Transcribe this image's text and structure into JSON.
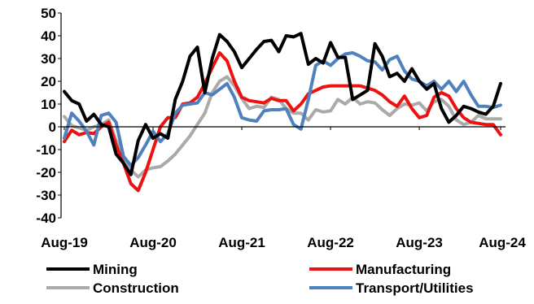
{
  "chart_data": {
    "type": "line",
    "title": "",
    "xlabel": "",
    "ylabel": "",
    "ylim": [
      -40,
      50
    ],
    "yticks": [
      -40,
      -30,
      -20,
      -10,
      0,
      10,
      20,
      30,
      40,
      50
    ],
    "xticks": [
      "Aug-19",
      "Aug-20",
      "Aug-21",
      "Aug-22",
      "Aug-23",
      "Aug-24"
    ],
    "x_start": "Aug-19",
    "x_end": "Aug-24",
    "grid": false,
    "legend_position": "bottom",
    "series": [
      {
        "name": "Mining",
        "color": "#000000",
        "values": [
          15.5,
          11.5,
          10,
          2.5,
          5.5,
          1,
          0,
          -12,
          -16,
          -21,
          -6,
          1,
          -5,
          -3,
          -5,
          12,
          20,
          31,
          35,
          15,
          30,
          40.5,
          37.5,
          33,
          26,
          30,
          34,
          37.5,
          38,
          33,
          40,
          39.5,
          41,
          27.5,
          30,
          28,
          37,
          30.5,
          30.5,
          12,
          14,
          16,
          36.5,
          31,
          22,
          23.5,
          20,
          25.5,
          20,
          16.5,
          19,
          8,
          2,
          5,
          9,
          8,
          6.5,
          5.5,
          9,
          19
        ]
      },
      {
        "name": "Manufacturing",
        "color": "#ee1111",
        "values": [
          -6.5,
          -1.5,
          -3.5,
          -2.5,
          -3,
          0,
          2,
          -8,
          -16,
          -25,
          -28,
          -20,
          -10,
          0,
          4,
          4,
          10,
          10.5,
          13,
          19,
          26,
          32.5,
          29,
          20,
          13,
          11.5,
          11,
          10.5,
          12.5,
          11.5,
          11.5,
          7,
          10,
          14.5,
          16,
          17.5,
          18,
          18,
          18,
          18,
          18,
          17,
          16,
          14,
          11,
          9,
          13.5,
          8,
          4,
          5,
          13,
          15,
          13.5,
          8,
          4,
          2,
          1.5,
          1,
          1,
          -3.5
        ]
      },
      {
        "name": "Construction",
        "color": "#aaaaaa",
        "values": [
          4.5,
          0.5,
          -0.5,
          -1.5,
          0,
          1,
          3,
          -6,
          -13,
          -19,
          -22,
          -19,
          -18,
          -17.5,
          -15,
          -12,
          -8,
          -4,
          1,
          6,
          15,
          20,
          22,
          18,
          12.5,
          8,
          9,
          8.5,
          13,
          12,
          8,
          6,
          6,
          3,
          7.5,
          6.5,
          7,
          12,
          10,
          13,
          10,
          11,
          10.5,
          7.5,
          5,
          8,
          10,
          9.5,
          10.5,
          7,
          11,
          12,
          9,
          3,
          1,
          2,
          5,
          3.5,
          3.5,
          3.5
        ]
      },
      {
        "name": "Transport/Utilities",
        "color": "#4f81bd",
        "values": [
          -5,
          6,
          2.5,
          -2,
          -8,
          5,
          6,
          2,
          -13,
          -17,
          -13.5,
          -8,
          -2,
          -6.5,
          -3,
          6,
          9.5,
          10,
          10.5,
          15,
          14,
          16.5,
          19,
          13,
          4,
          3,
          2.5,
          7,
          7.5,
          7.5,
          8,
          1,
          -1,
          12,
          27,
          29,
          27,
          30,
          32,
          32.5,
          31,
          29,
          28.5,
          25,
          29.5,
          31,
          24.5,
          21,
          20,
          18,
          20,
          16.5,
          20,
          15.5,
          20,
          14,
          9,
          9,
          8.5,
          9.5
        ]
      }
    ]
  }
}
